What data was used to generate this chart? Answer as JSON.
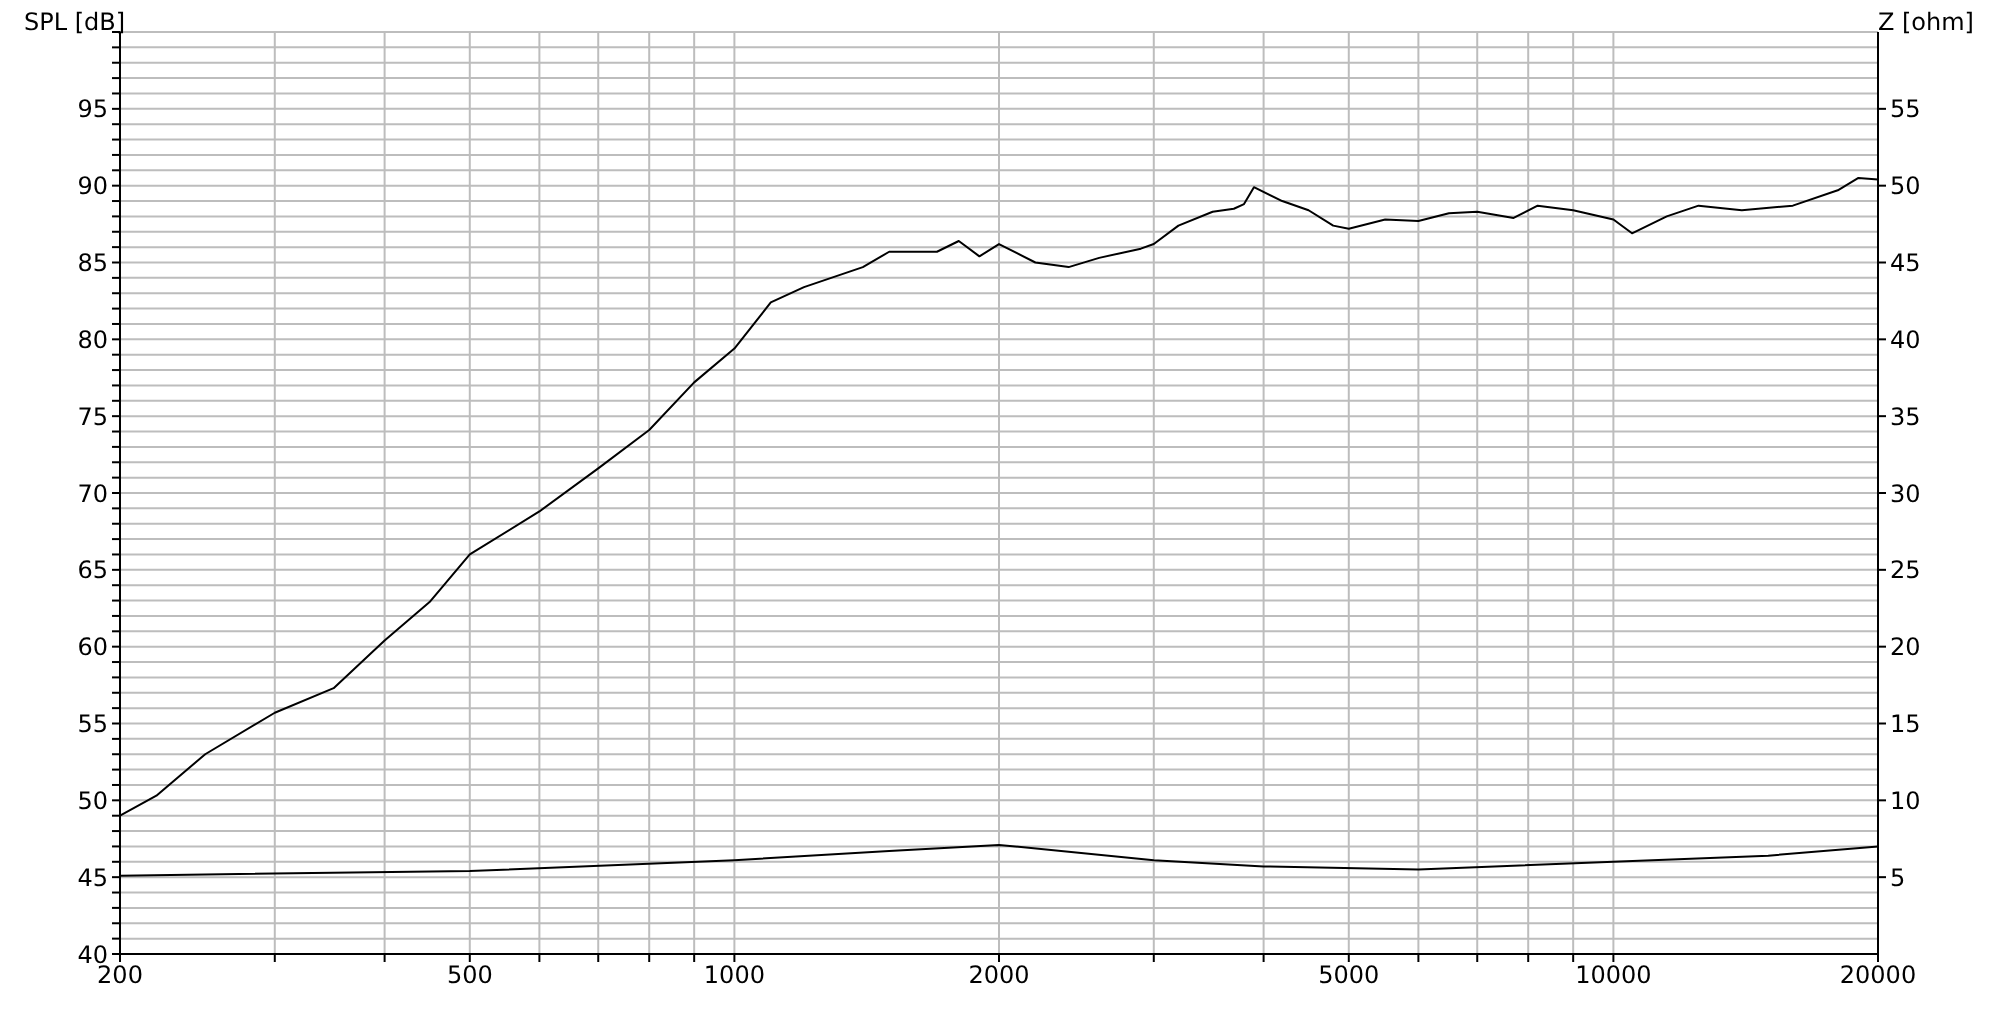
{
  "chart_data": {
    "type": "line",
    "ylabel": "SPL [dB]",
    "y2label": "Z [ohm]",
    "log": "x",
    "grid": true,
    "marker": "none",
    "line_style": "solid",
    "xlim": [
      200,
      20000
    ],
    "xticks": [
      200,
      {
        "value": 300,
        "label": null
      },
      {
        "value": 400,
        "label": null
      },
      500,
      {
        "value": 600,
        "label": null
      },
      {
        "value": 700,
        "label": null
      },
      {
        "value": 800,
        "label": null
      },
      {
        "value": 900,
        "label": null
      },
      1000,
      2000,
      {
        "value": 3000,
        "label": null
      },
      {
        "value": 4000,
        "label": null
      },
      5000,
      {
        "value": 6000,
        "label": null
      },
      {
        "value": 7000,
        "label": null
      },
      {
        "value": 8000,
        "label": null
      },
      {
        "value": 9000,
        "label": null
      },
      10000,
      20000
    ],
    "ylim": [
      40,
      100
    ],
    "yticks": [
      40,
      {
        "value": 41,
        "label": null
      },
      {
        "value": 42,
        "label": null
      },
      {
        "value": 43,
        "label": null
      },
      {
        "value": 44,
        "label": null
      },
      45,
      {
        "value": 46,
        "label": null
      },
      {
        "value": 47,
        "label": null
      },
      {
        "value": 48,
        "label": null
      },
      {
        "value": 49,
        "label": null
      },
      50,
      {
        "value": 51,
        "label": null
      },
      {
        "value": 52,
        "label": null
      },
      {
        "value": 53,
        "label": null
      },
      {
        "value": 54,
        "label": null
      },
      55,
      {
        "value": 56,
        "label": null
      },
      {
        "value": 57,
        "label": null
      },
      {
        "value": 58,
        "label": null
      },
      {
        "value": 59,
        "label": null
      },
      60,
      {
        "value": 61,
        "label": null
      },
      {
        "value": 62,
        "label": null
      },
      {
        "value": 63,
        "label": null
      },
      {
        "value": 64,
        "label": null
      },
      65,
      {
        "value": 66,
        "label": null
      },
      {
        "value": 67,
        "label": null
      },
      {
        "value": 68,
        "label": null
      },
      {
        "value": 69,
        "label": null
      },
      70,
      {
        "value": 71,
        "label": null
      },
      {
        "value": 72,
        "label": null
      },
      {
        "value": 73,
        "label": null
      },
      {
        "value": 74,
        "label": null
      },
      75,
      {
        "value": 76,
        "label": null
      },
      {
        "value": 77,
        "label": null
      },
      {
        "value": 78,
        "label": null
      },
      {
        "value": 79,
        "label": null
      },
      80,
      {
        "value": 81,
        "label": null
      },
      {
        "value": 82,
        "label": null
      },
      {
        "value": 83,
        "label": null
      },
      {
        "value": 84,
        "label": null
      },
      85,
      {
        "value": 86,
        "label": null
      },
      {
        "value": 87,
        "label": null
      },
      {
        "value": 88,
        "label": null
      },
      {
        "value": 89,
        "label": null
      },
      90,
      {
        "value": 91,
        "label": null
      },
      {
        "value": 92,
        "label": null
      },
      {
        "value": 93,
        "label": null
      },
      {
        "value": 94,
        "label": null
      },
      95,
      {
        "value": 96,
        "label": null
      },
      {
        "value": 97,
        "label": null
      },
      {
        "value": 98,
        "label": null
      },
      {
        "value": 99,
        "label": null
      },
      {
        "value": 100,
        "label": null
      }
    ],
    "y2lim": [
      0,
      60
    ],
    "y2ticks": [
      5,
      10,
      15,
      20,
      25,
      30,
      35,
      40,
      45,
      50,
      55
    ],
    "series": [
      {
        "color": "#000000",
        "x": [
          200,
          220,
          250,
          300,
          350,
          400,
          450,
          500,
          600,
          700,
          800,
          900,
          1000,
          1100,
          1200,
          1400,
          1500,
          1700,
          1800,
          1900,
          2000,
          2200,
          2400,
          2600,
          2900,
          3000,
          3200,
          3500,
          3700,
          3800,
          3900,
          4200,
          4500,
          4800,
          5000,
          5500,
          6000,
          6500,
          7000,
          7700,
          8200,
          9000,
          10000,
          10500,
          11500,
          12500,
          14000,
          16000,
          18000,
          19000,
          20000
        ],
        "values": [
          49.0,
          50.3,
          53.0,
          55.7,
          57.3,
          60.4,
          62.9,
          66.0,
          68.8,
          71.6,
          74.1,
          77.2,
          79.4,
          82.4,
          83.4,
          84.7,
          85.7,
          85.7,
          86.4,
          85.4,
          86.2,
          85.0,
          84.7,
          85.3,
          85.9,
          86.2,
          87.4,
          88.3,
          88.5,
          88.8,
          89.9,
          89.0,
          88.4,
          87.4,
          87.2,
          87.8,
          87.7,
          88.2,
          88.3,
          87.9,
          88.7,
          88.4,
          87.8,
          86.9,
          88.0,
          88.7,
          88.4,
          88.7,
          89.7,
          90.5,
          90.4
        ]
      },
      {
        "color": "#000000",
        "axis": "y2",
        "x": [
          200,
          500,
          1000,
          1500,
          2000,
          3000,
          4000,
          6000,
          10000,
          15000,
          20000
        ],
        "values": [
          5.1,
          5.4,
          6.1,
          6.7,
          7.1,
          6.1,
          5.7,
          5.5,
          6.0,
          6.4,
          7.0
        ]
      }
    ]
  }
}
